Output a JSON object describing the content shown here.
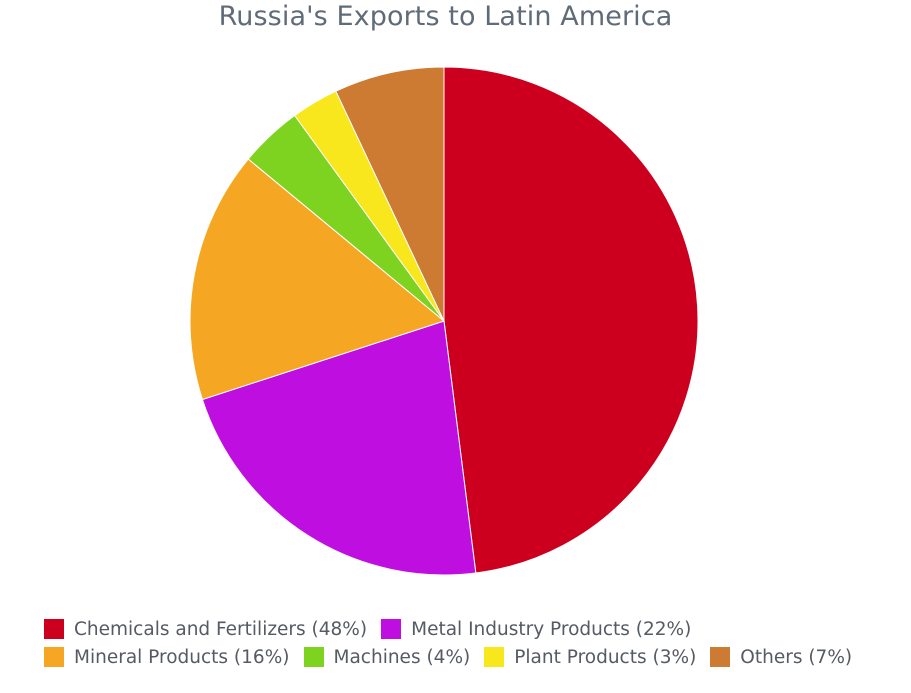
{
  "chart_data": {
    "type": "pie",
    "title": "Russia's Exports to Latin America",
    "slices": [
      {
        "label": "Chemicals and Fertilizers",
        "value": 48,
        "legend": "Chemicals and Fertilizers (48%)",
        "color": "#cc001e"
      },
      {
        "label": "Metal Industry Products",
        "value": 22,
        "legend": "Metal Industry Products (22%)",
        "color": "#bf0fe0"
      },
      {
        "label": "Mineral Products",
        "value": 16,
        "legend": "Mineral Products (16%)",
        "color": "#f5a623"
      },
      {
        "label": "Machines",
        "value": 4,
        "legend": "Machines (4%)",
        "color": "#7ed321"
      },
      {
        "label": "Plant Products",
        "value": 3,
        "legend": "Plant Products (3%)",
        "color": "#f8e71c"
      },
      {
        "label": "Others",
        "value": 7,
        "legend": "Others (7%)",
        "color": "#cd7a32"
      }
    ],
    "legend_position": "bottom"
  }
}
